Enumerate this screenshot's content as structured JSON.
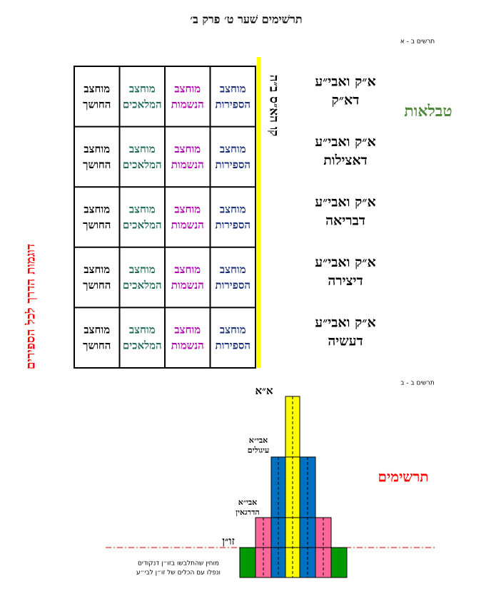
{
  "header": {
    "title": "תרשׁימים שׁער ט׳ פרק ב׳",
    "label_a": "תרשים ב - א",
    "label_b": "תרשים ב - ב"
  },
  "table": {
    "rows": [
      [
        {
          "top": "מוחצב",
          "bottom": "החושך"
        },
        {
          "top": "מוחצב",
          "bottom": "המלאכים"
        },
        {
          "top": "מוחצב",
          "bottom": "הנשמות"
        },
        {
          "top": "מוחצב",
          "bottom": "הספירות"
        }
      ],
      [
        {
          "top": "מוחצב",
          "bottom": "החושך"
        },
        {
          "top": "מוחצב",
          "bottom": "המלאכים"
        },
        {
          "top": "מוחצב",
          "bottom": "הנשמות"
        },
        {
          "top": "מוחצב",
          "bottom": "הספירות"
        }
      ],
      [
        {
          "top": "מוחצב",
          "bottom": "החושך"
        },
        {
          "top": "מוחצב",
          "bottom": "המלאכים"
        },
        {
          "top": "מוחצב",
          "bottom": "הנשמות"
        },
        {
          "top": "מוחצב",
          "bottom": "הספירות"
        }
      ],
      [
        {
          "top": "מוחצב",
          "bottom": "החושך"
        },
        {
          "top": "מוחצב",
          "bottom": "המלאכים"
        },
        {
          "top": "מוחצב",
          "bottom": "הנשמות"
        },
        {
          "top": "מוחצב",
          "bottom": "הספירות"
        }
      ],
      [
        {
          "top": "מוחצב",
          "bottom": "החושך"
        },
        {
          "top": "מוחצב",
          "bottom": "המלאכים"
        },
        {
          "top": "מוחצב",
          "bottom": "הנשמות"
        },
        {
          "top": "מוחצב",
          "bottom": "הספירות"
        }
      ]
    ],
    "line_label": "קו הא״ס ב״ה",
    "worlds": [
      {
        "top": "א״ק ואבי״ע",
        "bottom": "דא״ק"
      },
      {
        "top": "א״ק ואבי״ע",
        "bottom": "דאצילות"
      },
      {
        "top": "א״ק ואבי״ע",
        "bottom": "דבריאה"
      },
      {
        "top": "א״ק ואבי״ע",
        "bottom": "דיצירה"
      },
      {
        "top": "א״ק ואבי״ע",
        "bottom": "דעשיה"
      }
    ],
    "side_title": "טבלאות"
  },
  "side_vertical": "דוגמות הדרך לכל הספירים",
  "chart": {
    "title": "תרשימים",
    "labels": [
      {
        "top": "א״א"
      },
      {
        "top": "אבי״א",
        "bottom": "עיגולים"
      },
      {
        "top": "אבי״א",
        "bottom": "הדרגאין"
      },
      {
        "top": "זו״ן"
      }
    ],
    "note": [
      "מוחין שהתלבשו בזו״ן דנקודים",
      "ונפלו עם הכלים של זו״ן לבי״ע"
    ]
  }
}
